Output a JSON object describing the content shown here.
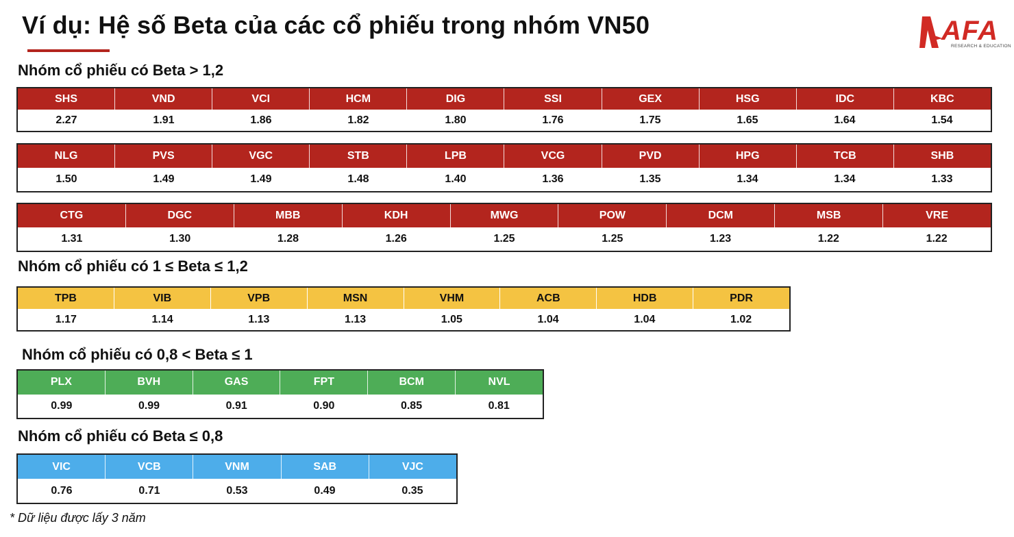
{
  "title": "Ví dụ: Hệ số Beta của các cổ phiếu trong nhóm VN50",
  "logo": {
    "text": "AFA",
    "sub": "RESEARCH & EDUCATION",
    "color": "#d12a24"
  },
  "groups": [
    {
      "heading": "Nhóm cổ phiếu có Beta > 1,2",
      "color": "#b3251e",
      "tables": [
        {
          "tickers": [
            "SHS",
            "VND",
            "VCI",
            "HCM",
            "DIG",
            "SSI",
            "GEX",
            "HSG",
            "IDC",
            "KBC"
          ],
          "values": [
            "2.27",
            "1.91",
            "1.86",
            "1.82",
            "1.80",
            "1.76",
            "1.75",
            "1.65",
            "1.64",
            "1.54"
          ]
        },
        {
          "tickers": [
            "NLG",
            "PVS",
            "VGC",
            "STB",
            "LPB",
            "VCG",
            "PVD",
            "HPG",
            "TCB",
            "SHB"
          ],
          "values": [
            "1.50",
            "1.49",
            "1.49",
            "1.48",
            "1.40",
            "1.36",
            "1.35",
            "1.34",
            "1.34",
            "1.33"
          ]
        },
        {
          "tickers": [
            "CTG",
            "DGC",
            "MBB",
            "KDH",
            "MWG",
            "POW",
            "DCM",
            "MSB",
            "VRE"
          ],
          "values": [
            "1.31",
            "1.30",
            "1.28",
            "1.26",
            "1.25",
            "1.25",
            "1.23",
            "1.22",
            "1.22"
          ]
        }
      ]
    },
    {
      "heading": "Nhóm cổ phiếu có 1 ≤ Beta ≤ 1,2",
      "color": "#f4c342",
      "tables": [
        {
          "tickers": [
            "TPB",
            "VIB",
            "VPB",
            "MSN",
            "VHM",
            "ACB",
            "HDB",
            "PDR"
          ],
          "values": [
            "1.17",
            "1.14",
            "1.13",
            "1.13",
            "1.05",
            "1.04",
            "1.04",
            "1.02"
          ]
        }
      ]
    },
    {
      "heading": "Nhóm cổ phiếu có 0,8 < Beta ≤ 1",
      "color": "#4ead57",
      "tables": [
        {
          "tickers": [
            "PLX",
            "BVH",
            "GAS",
            "FPT",
            "BCM",
            "NVL"
          ],
          "values": [
            "0.99",
            "0.99",
            "0.91",
            "0.90",
            "0.85",
            "0.81"
          ]
        }
      ]
    },
    {
      "heading": "Nhóm cổ phiếu có Beta ≤ 0,8",
      "color": "#4dadea",
      "tables": [
        {
          "tickers": [
            "VIC",
            "VCB",
            "VNM",
            "SAB",
            "VJC"
          ],
          "values": [
            "0.76",
            "0.71",
            "0.53",
            "0.49",
            "0.35"
          ]
        }
      ]
    }
  ],
  "footnote": "* Dữ liệu được lấy 3 năm"
}
